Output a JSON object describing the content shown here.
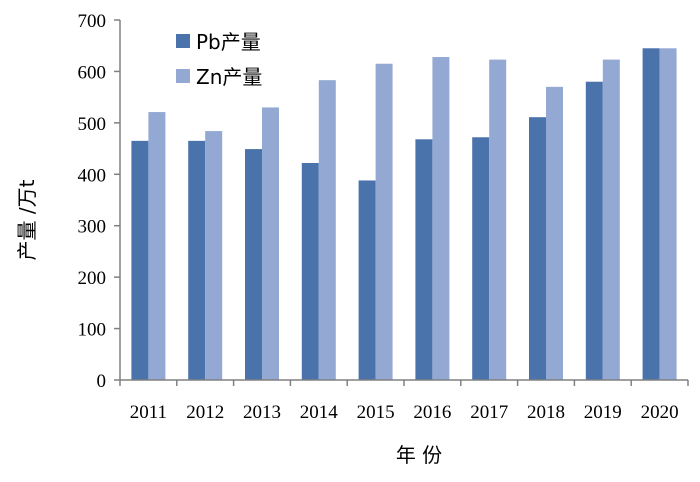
{
  "colors": {
    "pb": "#4a72ab",
    "zn": "#93a9d4",
    "axis": "#808080"
  },
  "chart_data": {
    "type": "bar",
    "categories": [
      "2011",
      "2012",
      "2013",
      "2014",
      "2015",
      "2016",
      "2017",
      "2018",
      "2019",
      "2020"
    ],
    "series": [
      {
        "name": "Pb产量",
        "values": [
          465,
          465,
          449,
          422,
          388,
          468,
          472,
          511,
          580,
          645
        ]
      },
      {
        "name": "Zn产量",
        "values": [
          521,
          484,
          530,
          583,
          615,
          628,
          623,
          570,
          623,
          645
        ]
      }
    ],
    "title": "",
    "xlabel": "年 份",
    "ylabel": "产量 /万t",
    "ylim": [
      0,
      700
    ],
    "yticks": [
      "0",
      "100",
      "200",
      "300",
      "400",
      "500",
      "600",
      "700"
    ],
    "grid": false,
    "legend_position": "top-left"
  }
}
